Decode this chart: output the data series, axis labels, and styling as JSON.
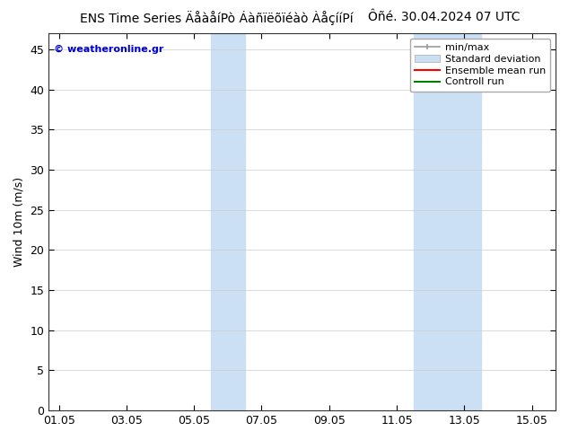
{
  "title_main": "ENS Time Series ÄåàåíPò Áàñïëõïéàò ÀåçííPí",
  "title_right": "Ôñé. 30.04.2024 07 UTC",
  "ylabel": "Wind 10m (m/s)",
  "background_color": "#ffffff",
  "plot_bg_color": "#ffffff",
  "shaded_regions": [
    {
      "x_start": 4.5,
      "x_end": 5.5,
      "color": "#cce0f5"
    },
    {
      "x_start": 10.5,
      "x_end": 12.5,
      "color": "#cce0f5"
    }
  ],
  "xticklabels": [
    "01.05",
    "03.05",
    "05.05",
    "07.05",
    "09.05",
    "11.05",
    "13.05",
    "15.05"
  ],
  "xtick_positions": [
    0,
    2,
    4,
    6,
    8,
    10,
    12,
    14
  ],
  "xlim": [
    -0.3,
    14.7
  ],
  "ylim": [
    0,
    47
  ],
  "yticks": [
    0,
    5,
    10,
    15,
    20,
    25,
    30,
    35,
    40,
    45
  ],
  "legend_items": [
    {
      "label": "min/max",
      "color": "#aaaaaa",
      "type": "errorbar"
    },
    {
      "label": "Standard deviation",
      "color": "#cce0f5",
      "type": "band"
    },
    {
      "label": "Ensemble mean run",
      "color": "#ff0000",
      "type": "line"
    },
    {
      "label": "Controll run",
      "color": "#008000",
      "type": "line"
    }
  ],
  "watermark_text": "© weatheronline.gr",
  "watermark_color": "#0000cc",
  "title_fontsize": 10,
  "axis_label_fontsize": 9,
  "tick_fontsize": 9,
  "legend_fontsize": 8
}
